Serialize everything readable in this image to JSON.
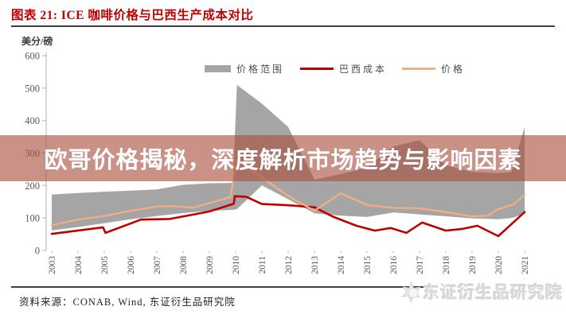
{
  "header": {
    "title": "图表 21: ICE 咖啡价格与巴西生产成本对比",
    "title_color": "#c00000"
  },
  "banner": {
    "text": "欧哥价格揭秘，深度解析市场趋势与影响因素",
    "bg": "rgba(170,77,62,0.62)",
    "text_color": "#ffffff"
  },
  "chart_data": {
    "type": "area",
    "title": "图表 21: ICE 咖啡价格与巴西生产成本对比",
    "ylabel": "美分/磅",
    "xlabel": "",
    "ylim": [
      0,
      600
    ],
    "yticks": [
      0,
      100,
      200,
      300,
      400,
      500,
      600
    ],
    "xticks": [
      2003,
      2004,
      2005,
      2006,
      2007,
      2008,
      2009,
      2010,
      2011,
      2012,
      2013,
      2014,
      2015,
      2016,
      2017,
      2018,
      2019,
      2020,
      2021
    ],
    "grid": false,
    "legend_position": "top",
    "axis_color": "#bfbfbf",
    "tick_label_color": "#595959",
    "band": {
      "name": "价格范围",
      "color": "#a5a5a5",
      "x": [
        2003,
        2004,
        2005,
        2006,
        2007,
        2008,
        2009,
        2009.9,
        2010.05,
        2011,
        2012,
        2013,
        2014,
        2015,
        2016,
        2017,
        2018,
        2019,
        2020,
        2020.5,
        2021
      ],
      "max": [
        172,
        177,
        181,
        184,
        188,
        202,
        207,
        208,
        510,
        452,
        380,
        218,
        235,
        255,
        320,
        340,
        262,
        242,
        238,
        242,
        380
      ],
      "min": [
        62,
        72,
        84,
        96,
        106,
        115,
        122,
        125,
        127,
        200,
        158,
        114,
        107,
        103,
        117,
        111,
        105,
        99,
        96,
        100,
        113
      ]
    },
    "series": [
      {
        "name": "巴西成本",
        "color": "#c00000",
        "width": 2.6,
        "points": [
          [
            2003,
            51
          ],
          [
            2004.95,
            71
          ],
          [
            2005.05,
            54
          ],
          [
            2006.4,
            95
          ],
          [
            2007.5,
            97
          ],
          [
            2009,
            120
          ],
          [
            2009.93,
            144
          ],
          [
            2009.97,
            167
          ],
          [
            2010.4,
            165
          ],
          [
            2011,
            143
          ],
          [
            2012,
            139
          ],
          [
            2013,
            133
          ],
          [
            2013.7,
            104
          ],
          [
            2014.6,
            76
          ],
          [
            2015.3,
            61
          ],
          [
            2015.9,
            69
          ],
          [
            2016.5,
            54
          ],
          [
            2017.1,
            86
          ],
          [
            2018,
            61
          ],
          [
            2018.6,
            66
          ],
          [
            2019.2,
            76
          ],
          [
            2020,
            44
          ],
          [
            2021,
            118
          ]
        ]
      },
      {
        "name": "价格",
        "color": "#f3ad82",
        "width": 2.3,
        "points": [
          [
            2003,
            78
          ],
          [
            2004,
            95
          ],
          [
            2005,
            106
          ],
          [
            2006,
            122
          ],
          [
            2007,
            135
          ],
          [
            2007.5,
            137
          ],
          [
            2008.4,
            132
          ],
          [
            2009.8,
            164
          ],
          [
            2010.05,
            278
          ],
          [
            2011,
            225
          ],
          [
            2012,
            168
          ],
          [
            2013,
            122
          ],
          [
            2014,
            176
          ],
          [
            2015,
            140
          ],
          [
            2016,
            131
          ],
          [
            2017,
            130
          ],
          [
            2018,
            118
          ],
          [
            2019,
            105
          ],
          [
            2019.6,
            107
          ],
          [
            2020,
            127
          ],
          [
            2020.6,
            143
          ],
          [
            2021,
            172
          ]
        ]
      }
    ]
  },
  "footer": {
    "source": "资料来源：CONAB, Wind, 东证衍生品研究院",
    "watermark_text": "东证衍生品研究院"
  }
}
